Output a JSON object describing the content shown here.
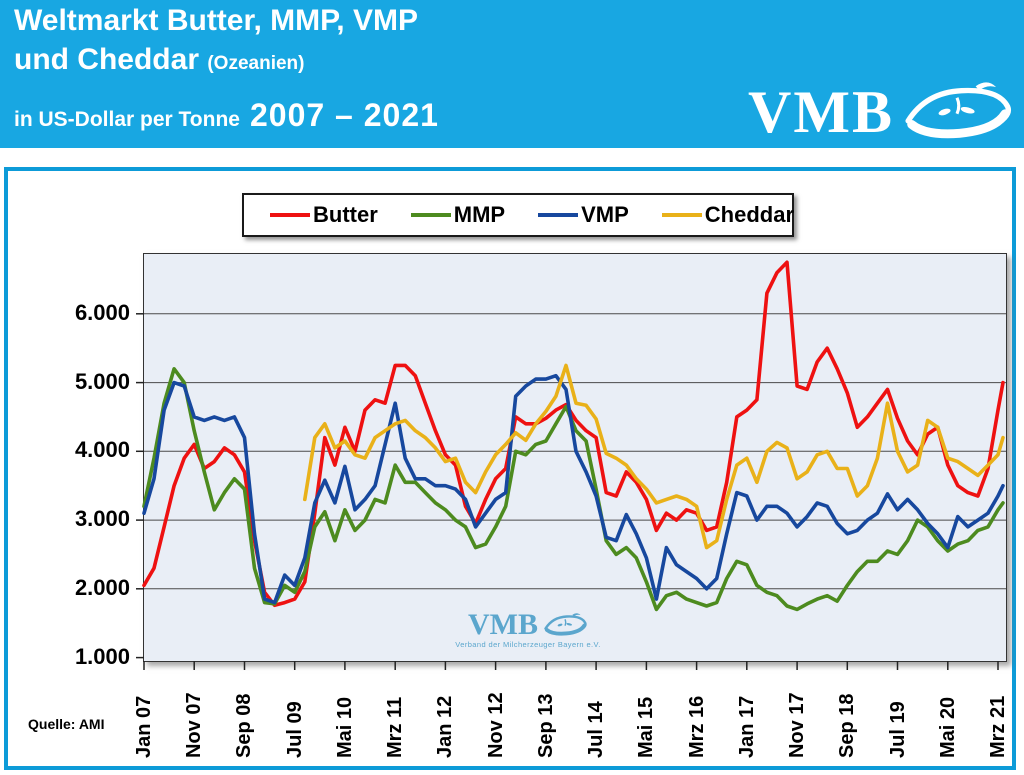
{
  "header": {
    "bg_color": "#18a7e2",
    "title_line1": "Weltmarkt Butter, MMP, VMP",
    "title_line2": "und Cheddar",
    "title_line2_suffix": "(Ozeanien)",
    "subtitle_prefix": "in US-Dollar per Tonne",
    "subtitle_years": "2007 – 2021",
    "logo_text": "VMB"
  },
  "panel": {
    "border_color": "#0d9bd8"
  },
  "watermark": {
    "text": "VMB",
    "subtext": "Verband der Milcherzeuger Bayern e.V."
  },
  "source_note": "Quelle: AMI",
  "chart_data": {
    "type": "line",
    "title": "Weltmarkt Butter, MMP, VMP und Cheddar (Ozeanien)",
    "ylabel": "US-Dollar per Tonne",
    "grid": true,
    "legend_position": "top",
    "plot_bg": "#e9eef6",
    "grid_color": "#4a4a4a",
    "ylim": [
      950,
      6870
    ],
    "y_ticks": [
      "6.000",
      "5.000",
      "4.000",
      "3.000",
      "2.000",
      "1.000"
    ],
    "y_tick_values": [
      6000,
      5000,
      4000,
      3000,
      2000,
      1000
    ],
    "x_tick_labels": [
      "Jan 07",
      "Nov 07",
      "Sep 08",
      "Jul 09",
      "Mai 10",
      "Mrz 11",
      "Jan 12",
      "Nov 12",
      "Sep 13",
      "Jul 14",
      "Mai 15",
      "Mrz 16",
      "Jan 17",
      "Nov 17",
      "Sep 18",
      "Jul 19",
      "Mai 20",
      "Mrz 21"
    ],
    "x_tick_interval_months": 10,
    "sample_step_months": 2,
    "final_sample_month": 171,
    "series": [
      {
        "name": "Butter",
        "color": "#ee1111",
        "values": [
          2050,
          2300,
          2900,
          3500,
          3900,
          4100,
          3750,
          3850,
          4050,
          3950,
          3700,
          2700,
          1950,
          1760,
          1800,
          1850,
          2100,
          3100,
          4200,
          3800,
          4350,
          4000,
          4600,
          4750,
          4700,
          5250,
          5250,
          5100,
          4700,
          4300,
          3950,
          3800,
          3200,
          2950,
          3300,
          3600,
          3750,
          4500,
          4400,
          4400,
          4480,
          4600,
          4680,
          4450,
          4300,
          4200,
          3400,
          3350,
          3700,
          3550,
          3300,
          2850,
          3100,
          3000,
          3150,
          3100,
          2850,
          2900,
          3550,
          4500,
          4600,
          4750,
          6300,
          6600,
          6750,
          4950,
          4900,
          5300,
          5500,
          5200,
          4850,
          4350,
          4500,
          4700,
          4900,
          4480,
          4150,
          3950,
          4250,
          4350,
          3800,
          3500,
          3400,
          3350,
          3750,
          4600,
          5000
        ]
      },
      {
        "name": "MMP",
        "color": "#4d8b1f",
        "values": [
          3200,
          3900,
          4700,
          5200,
          5000,
          4300,
          3700,
          3150,
          3400,
          3600,
          3450,
          2300,
          1800,
          1780,
          2050,
          1950,
          2250,
          2900,
          3120,
          2700,
          3150,
          2850,
          3000,
          3300,
          3250,
          3800,
          3550,
          3550,
          3400,
          3250,
          3150,
          3000,
          2900,
          2600,
          2650,
          2900,
          3200,
          4000,
          3950,
          4100,
          4150,
          4400,
          4650,
          4300,
          4150,
          3450,
          2700,
          2500,
          2600,
          2450,
          2100,
          1700,
          1900,
          1950,
          1850,
          1800,
          1750,
          1800,
          2150,
          2400,
          2350,
          2050,
          1950,
          1900,
          1750,
          1700,
          1780,
          1850,
          1900,
          1820,
          2050,
          2250,
          2400,
          2400,
          2550,
          2500,
          2700,
          3000,
          2900,
          2700,
          2550,
          2650,
          2700,
          2850,
          2900,
          3150,
          3250
        ]
      },
      {
        "name": "VMP",
        "color": "#17489e",
        "values": [
          3100,
          3600,
          4600,
          5000,
          4950,
          4500,
          4450,
          4500,
          4450,
          4500,
          4200,
          2800,
          1850,
          1800,
          2200,
          2050,
          2450,
          3250,
          3580,
          3250,
          3780,
          3150,
          3300,
          3500,
          4100,
          4700,
          3900,
          3600,
          3600,
          3500,
          3500,
          3450,
          3300,
          2900,
          3100,
          3300,
          3400,
          4800,
          4950,
          5050,
          5050,
          5100,
          4900,
          4000,
          3700,
          3350,
          2750,
          2700,
          3080,
          2800,
          2450,
          1850,
          2600,
          2350,
          2250,
          2150,
          2000,
          2150,
          2800,
          3400,
          3350,
          3000,
          3200,
          3200,
          3100,
          2900,
          3050,
          3250,
          3200,
          2950,
          2800,
          2850,
          3000,
          3100,
          3380,
          3150,
          3300,
          3150,
          2950,
          2800,
          2600,
          3050,
          2900,
          3000,
          3100,
          3350,
          3500
        ]
      },
      {
        "name": "Cheddar",
        "color": "#e9b119",
        "values": [
          null,
          null,
          null,
          null,
          null,
          null,
          null,
          null,
          null,
          null,
          null,
          null,
          null,
          null,
          null,
          null,
          3300,
          4200,
          4400,
          4050,
          4150,
          3950,
          3900,
          4200,
          4300,
          4400,
          4450,
          4300,
          4200,
          4050,
          3850,
          3900,
          3550,
          3400,
          3700,
          3950,
          4100,
          4270,
          4160,
          4400,
          4580,
          4800,
          5250,
          4700,
          4670,
          4470,
          3970,
          3900,
          3800,
          3600,
          3450,
          3250,
          3300,
          3350,
          3300,
          3200,
          2600,
          2700,
          3300,
          3800,
          3900,
          3550,
          4000,
          4130,
          4050,
          3600,
          3700,
          3950,
          4000,
          3750,
          3750,
          3350,
          3500,
          3900,
          4700,
          4000,
          3700,
          3800,
          4450,
          4350,
          3900,
          3850,
          3750,
          3650,
          3800,
          3950,
          4200
        ]
      }
    ]
  }
}
